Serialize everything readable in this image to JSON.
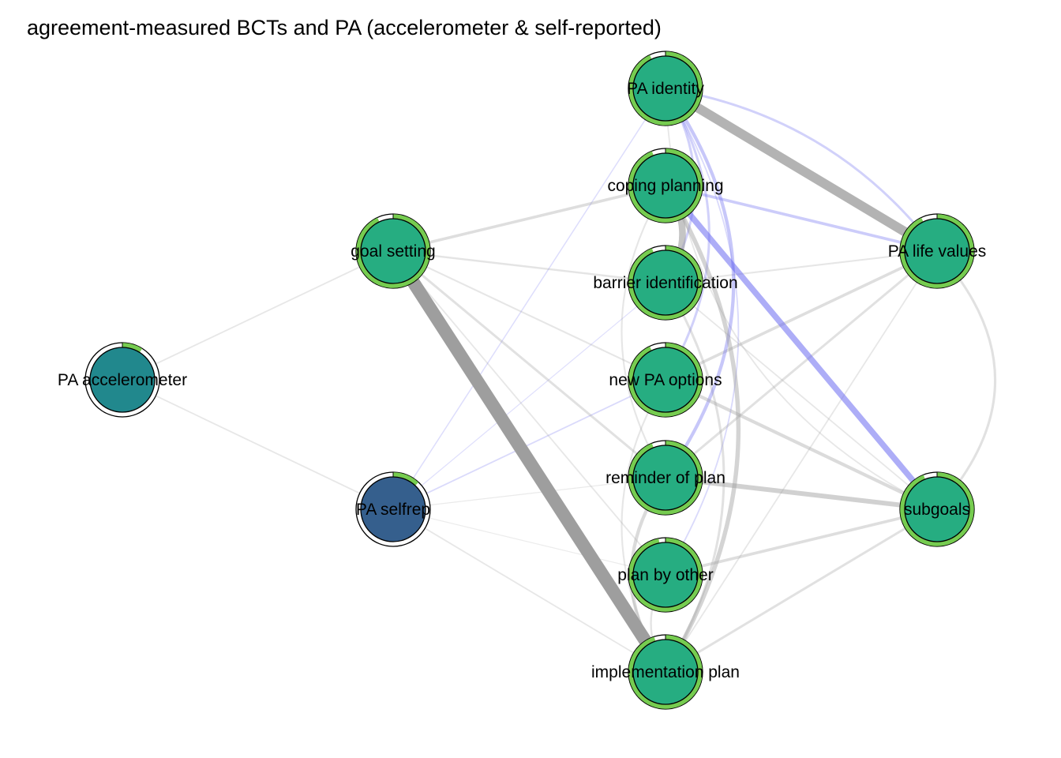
{
  "title": "agreement-measured BCTs and PA (accelerometer & self-reported)",
  "colors": {
    "bct_fill": "#26ad81",
    "pa_accel_fill": "#21888d",
    "pa_selfrep_fill": "#355f8d",
    "pie_ring": "#76cc50",
    "positive_edge": "#9e9e9e",
    "negative_edge": "#6a6af0"
  },
  "nodes": [
    {
      "id": "pa_identity",
      "label": "PA identity",
      "fill": "bct_fill",
      "pie": 0.93
    },
    {
      "id": "coping_planning",
      "label": "coping planning",
      "fill": "bct_fill",
      "pie": 0.94
    },
    {
      "id": "barrier_identification",
      "label": "barrier identification",
      "fill": "bct_fill",
      "pie": 0.94
    },
    {
      "id": "goal_setting",
      "label": "goal setting",
      "fill": "bct_fill",
      "pie": 0.93
    },
    {
      "id": "pa_life_values",
      "label": "PA life values",
      "fill": "bct_fill",
      "pie": 0.93
    },
    {
      "id": "pa_accelerometer",
      "label": "PA accelerometer",
      "fill": "pa_accel_fill",
      "pie": 0.09
    },
    {
      "id": "new_pa_options",
      "label": "new PA options",
      "fill": "bct_fill",
      "pie": 0.93
    },
    {
      "id": "pa_selfrep",
      "label": "PA selfrep",
      "fill": "pa_selfrep_fill",
      "pie": 0.12
    },
    {
      "id": "reminder_of_plan",
      "label": "reminder of plan",
      "fill": "bct_fill",
      "pie": 0.94
    },
    {
      "id": "subgoals",
      "label": "subgoals",
      "fill": "bct_fill",
      "pie": 0.94
    },
    {
      "id": "plan_by_other",
      "label": "plan by other",
      "fill": "bct_fill",
      "pie": 0.97
    },
    {
      "id": "implementation_plan",
      "label": "implementation plan",
      "fill": "bct_fill",
      "pie": 0.95
    }
  ],
  "edges": [
    {
      "from": "goal_setting",
      "to": "implementation_plan",
      "weight": 0.55,
      "sign": "positive",
      "curve": 0
    },
    {
      "from": "pa_identity",
      "to": "pa_life_values",
      "weight": 0.4,
      "sign": "positive",
      "curve": 0
    },
    {
      "from": "coping_planning",
      "to": "subgoals",
      "weight": -0.25,
      "sign": "negative",
      "curve": 0
    },
    {
      "from": "coping_planning",
      "to": "pa_life_values",
      "weight": -0.12,
      "sign": "negative",
      "curve": 0
    },
    {
      "from": "pa_identity",
      "to": "pa_life_values",
      "weight": -0.1,
      "sign": "negative",
      "curve": -0.2
    },
    {
      "from": "pa_identity",
      "to": "reminder_of_plan",
      "weight": -0.14,
      "sign": "negative",
      "curve": -0.35
    },
    {
      "from": "pa_identity",
      "to": "new_pa_options",
      "weight": -0.1,
      "sign": "negative",
      "curve": -0.3
    },
    {
      "from": "pa_identity",
      "to": "barrier_identification",
      "weight": -0.1,
      "sign": "negative",
      "curve": -0.3
    },
    {
      "from": "pa_identity",
      "to": "plan_by_other",
      "weight": -0.06,
      "sign": "negative",
      "curve": -0.3
    },
    {
      "from": "pa_identity",
      "to": "pa_selfrep",
      "weight": -0.05,
      "sign": "negative",
      "curve": 0
    },
    {
      "from": "pa_selfrep",
      "to": "new_pa_options",
      "weight": -0.06,
      "sign": "negative",
      "curve": 0
    },
    {
      "from": "pa_selfrep",
      "to": "barrier_identification",
      "weight": -0.04,
      "sign": "negative",
      "curve": 0
    },
    {
      "from": "coping_planning",
      "to": "barrier_identification",
      "weight": 0.28,
      "sign": "positive",
      "curve": -0.35
    },
    {
      "from": "coping_planning",
      "to": "implementation_plan",
      "weight": 0.18,
      "sign": "positive",
      "curve": -0.3
    },
    {
      "from": "reminder_of_plan",
      "to": "subgoals",
      "weight": 0.2,
      "sign": "positive",
      "curve": 0
    },
    {
      "from": "reminder_of_plan",
      "to": "implementation_plan",
      "weight": 0.14,
      "sign": "positive",
      "curve": 0.35
    },
    {
      "from": "new_pa_options",
      "to": "subgoals",
      "weight": 0.14,
      "sign": "positive",
      "curve": 0
    },
    {
      "from": "new_pa_options",
      "to": "pa_life_values",
      "weight": 0.12,
      "sign": "positive",
      "curve": 0
    },
    {
      "from": "goal_setting",
      "to": "coping_planning",
      "weight": 0.12,
      "sign": "positive",
      "curve": 0
    },
    {
      "from": "goal_setting",
      "to": "barrier_identification",
      "weight": 0.08,
      "sign": "positive",
      "curve": 0
    },
    {
      "from": "goal_setting",
      "to": "new_pa_options",
      "weight": 0.07,
      "sign": "positive",
      "curve": 0
    },
    {
      "from": "goal_setting",
      "to": "reminder_of_plan",
      "weight": 0.1,
      "sign": "positive",
      "curve": 0
    },
    {
      "from": "goal_setting",
      "to": "plan_by_other",
      "weight": 0.06,
      "sign": "positive",
      "curve": 0
    },
    {
      "from": "pa_life_values",
      "to": "subgoals",
      "weight": 0.1,
      "sign": "positive",
      "curve": -0.45
    },
    {
      "from": "pa_life_values",
      "to": "reminder_of_plan",
      "weight": 0.1,
      "sign": "positive",
      "curve": 0
    },
    {
      "from": "pa_life_values",
      "to": "barrier_identification",
      "weight": 0.07,
      "sign": "positive",
      "curve": 0
    },
    {
      "from": "pa_life_values",
      "to": "implementation_plan",
      "weight": 0.06,
      "sign": "positive",
      "curve": 0
    },
    {
      "from": "subgoals",
      "to": "plan_by_other",
      "weight": 0.12,
      "sign": "positive",
      "curve": 0
    },
    {
      "from": "subgoals",
      "to": "implementation_plan",
      "weight": 0.1,
      "sign": "positive",
      "curve": 0
    },
    {
      "from": "pa_accelerometer",
      "to": "goal_setting",
      "weight": 0.06,
      "sign": "positive",
      "curve": 0
    },
    {
      "from": "pa_accelerometer",
      "to": "pa_selfrep",
      "weight": 0.06,
      "sign": "positive",
      "curve": 0
    },
    {
      "from": "pa_selfrep",
      "to": "implementation_plan",
      "weight": 0.06,
      "sign": "positive",
      "curve": 0
    },
    {
      "from": "pa_selfrep",
      "to": "reminder_of_plan",
      "weight": 0.04,
      "sign": "positive",
      "curve": 0
    },
    {
      "from": "pa_selfrep",
      "to": "plan_by_other",
      "weight": 0.03,
      "sign": "positive",
      "curve": 0
    },
    {
      "from": "barrier_identification",
      "to": "implementation_plan",
      "weight": 0.1,
      "sign": "positive",
      "curve": -0.3
    },
    {
      "from": "new_pa_options",
      "to": "implementation_plan",
      "weight": 0.07,
      "sign": "positive",
      "curve": 0.3
    },
    {
      "from": "barrier_identification",
      "to": "subgoals",
      "weight": 0.06,
      "sign": "positive",
      "curve": 0
    },
    {
      "from": "plan_by_other",
      "to": "implementation_plan",
      "weight": 0.08,
      "sign": "positive",
      "curve": 0.3
    },
    {
      "from": "coping_planning",
      "to": "reminder_of_plan",
      "weight": 0.07,
      "sign": "positive",
      "curve": 0.3
    },
    {
      "from": "pa_identity",
      "to": "subgoals",
      "weight": 0.06,
      "sign": "positive",
      "curve": 0.3
    }
  ]
}
